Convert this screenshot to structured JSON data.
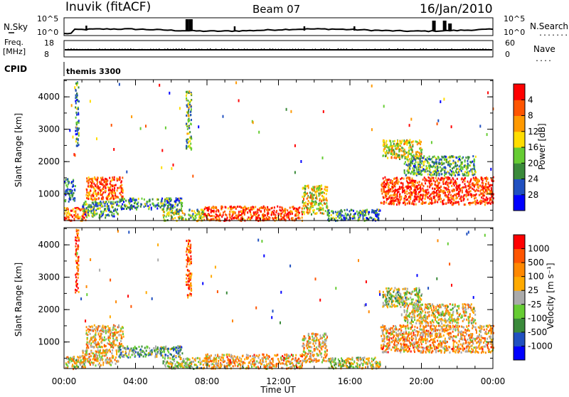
{
  "header": {
    "station": "Inuvik (fitACF)",
    "beam": "Beam 07",
    "date": "16/Jan/2010"
  },
  "summary": {
    "nsky_label": "N.Sky",
    "nsearch_label": "N.Search",
    "nsky_ticks": [
      "10^5",
      "10^0"
    ],
    "nsearch_ticks": [
      "10^5",
      "10^0"
    ],
    "freq_label": "Freq.",
    "freq_unit": "[MHz]",
    "freq_ticks": [
      "18",
      "8"
    ],
    "nave_label": "Nave",
    "nave_ticks": [
      "60",
      "0"
    ],
    "cpid_label": "CPID",
    "cpid_value": "themis 3300"
  },
  "colors": {
    "power_scale": [
      "#0000ff",
      "#2050c0",
      "#3a8a3a",
      "#66cc33",
      "#ffdd00",
      "#ff9900",
      "#ff5500",
      "#ff0000"
    ],
    "velocity_scale": [
      "#0000ff",
      "#2050c0",
      "#3a8a3a",
      "#66cc33",
      "#aaaaaa",
      "#ffaa00",
      "#ff8800",
      "#ff5500",
      "#ff0000"
    ]
  },
  "chart_data": [
    {
      "type": "heatmap",
      "ylabel": "Slant Range [km]",
      "xlabel": "Time UT",
      "x_tick_labels": [
        "00:00",
        "04:00",
        "08:00",
        "12:00",
        "16:00",
        "20:00",
        "00:00"
      ],
      "x_ticks_hours": [
        0,
        4,
        8,
        12,
        16,
        20,
        24
      ],
      "xlim_hours": [
        0,
        24
      ],
      "y_tick_labels": [
        "1000",
        "2000",
        "3000",
        "4000"
      ],
      "y_ticks": [
        1000,
        2000,
        3000,
        4000
      ],
      "ylim": [
        180,
        4530
      ],
      "colorbar": {
        "label": "Power [dB]",
        "tick_labels": [
          "4",
          "8",
          "12",
          "16",
          "20",
          "24",
          "28"
        ],
        "ticks": [
          4,
          8,
          12,
          16,
          20,
          24,
          28
        ],
        "range": [
          0,
          32
        ]
      },
      "echo_regions": [
        {
          "t": [
            0.0,
            1.2
          ],
          "r": [
            200,
            600
          ],
          "level": 0.8
        },
        {
          "t": [
            0.0,
            0.6
          ],
          "r": [
            800,
            1500
          ],
          "level": 0.25
        },
        {
          "t": [
            1.2,
            3.3
          ],
          "r": [
            850,
            1550
          ],
          "level": 0.82
        },
        {
          "t": [
            1.0,
            3.0
          ],
          "r": [
            300,
            800
          ],
          "level": 0.35
        },
        {
          "t": [
            3.0,
            6.6
          ],
          "r": [
            550,
            900
          ],
          "level": 0.3
        },
        {
          "t": [
            5.5,
            7.8
          ],
          "r": [
            200,
            550
          ],
          "level": 0.45
        },
        {
          "t": [
            7.8,
            13.3
          ],
          "r": [
            200,
            650
          ],
          "level": 0.85
        },
        {
          "t": [
            13.3,
            14.7
          ],
          "r": [
            400,
            1300
          ],
          "level": 0.55
        },
        {
          "t": [
            14.7,
            17.7
          ],
          "r": [
            200,
            550
          ],
          "level": 0.3
        },
        {
          "t": [
            17.7,
            24.0
          ],
          "r": [
            700,
            1550
          ],
          "level": 0.88
        },
        {
          "t": [
            17.8,
            20.0
          ],
          "r": [
            2100,
            2700
          ],
          "level": 0.55
        },
        {
          "t": [
            19.0,
            23.0
          ],
          "r": [
            1600,
            2200
          ],
          "level": 0.35
        },
        {
          "t": [
            6.8,
            7.1
          ],
          "r": [
            2400,
            4200
          ],
          "level": 0.4
        },
        {
          "t": [
            0.6,
            0.8
          ],
          "r": [
            2500,
            4500
          ],
          "level": 0.3
        }
      ]
    },
    {
      "type": "heatmap",
      "ylabel": "Slant Range [km]",
      "xlabel": "Time UT",
      "x_tick_labels": [
        "00:00",
        "04:00",
        "08:00",
        "12:00",
        "16:00",
        "20:00",
        "00:00"
      ],
      "x_ticks_hours": [
        0,
        4,
        8,
        12,
        16,
        20,
        24
      ],
      "xlim_hours": [
        0,
        24
      ],
      "y_tick_labels": [
        "1000",
        "2000",
        "3000",
        "4000"
      ],
      "y_ticks": [
        1000,
        2000,
        3000,
        4000
      ],
      "ylim": [
        180,
        4530
      ],
      "colorbar": {
        "label": "Velocity [m s⁻¹]",
        "tick_labels": [
          "1000",
          "500",
          "100",
          "25",
          "-25",
          "-100",
          "-500",
          "-1000"
        ],
        "ticks": [
          1000,
          500,
          100,
          25,
          -25,
          -100,
          -500,
          -1000
        ]
      },
      "echo_regions": [
        {
          "t": [
            0.0,
            1.2
          ],
          "r": [
            200,
            600
          ],
          "level": 0.55
        },
        {
          "t": [
            1.2,
            3.3
          ],
          "r": [
            850,
            1550
          ],
          "level": 0.62
        },
        {
          "t": [
            1.0,
            3.0
          ],
          "r": [
            300,
            800
          ],
          "level": 0.6
        },
        {
          "t": [
            3.0,
            6.6
          ],
          "r": [
            550,
            900
          ],
          "level": 0.35
        },
        {
          "t": [
            5.5,
            7.8
          ],
          "r": [
            200,
            550
          ],
          "level": 0.45
        },
        {
          "t": [
            7.8,
            13.3
          ],
          "r": [
            200,
            650
          ],
          "level": 0.65
        },
        {
          "t": [
            13.3,
            14.7
          ],
          "r": [
            400,
            1300
          ],
          "level": 0.62
        },
        {
          "t": [
            14.7,
            17.7
          ],
          "r": [
            200,
            550
          ],
          "level": 0.5
        },
        {
          "t": [
            17.7,
            24.0
          ],
          "r": [
            700,
            1550
          ],
          "level": 0.66
        },
        {
          "t": [
            17.8,
            20.0
          ],
          "r": [
            2100,
            2700
          ],
          "level": 0.45
        },
        {
          "t": [
            19.0,
            23.0
          ],
          "r": [
            1600,
            2200
          ],
          "level": 0.55
        },
        {
          "t": [
            6.8,
            7.1
          ],
          "r": [
            2400,
            4200
          ],
          "level": 0.85
        },
        {
          "t": [
            0.6,
            0.8
          ],
          "r": [
            2500,
            4500
          ],
          "level": 0.85
        }
      ]
    }
  ]
}
